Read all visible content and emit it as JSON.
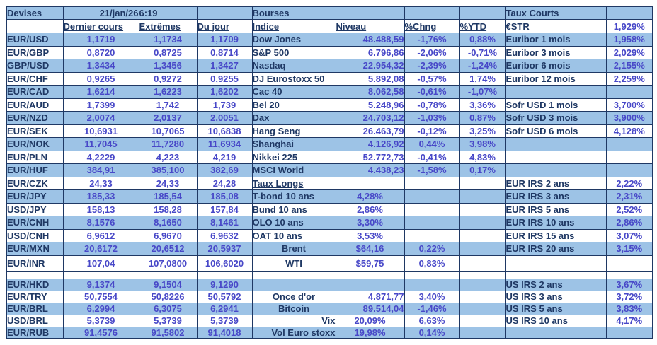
{
  "table_header": {
    "devises_title": "Devises",
    "date": "21/jan/26",
    "time": "6:19",
    "bourses_title": "Bourses",
    "taux_courts_title": "Taux Courts"
  },
  "column_headers": {
    "dernier_cours": "Dernier cours",
    "extremes": "Extrêmes",
    "du_jour": "Du jour",
    "indice": "Indice",
    "niveau": "Niveau",
    "pct_chng": "%Chng",
    "pct_ytd": "%YTD"
  },
  "estr": {
    "label": "€STR",
    "value": "1,929%"
  },
  "devises": [
    {
      "pair": "EUR/USD",
      "dernier_cours": "1,1719",
      "extremes": "1,1734",
      "du_jour": "1,1709"
    },
    {
      "pair": "EUR/GBP",
      "dernier_cours": "0,8720",
      "extremes": "0,8725",
      "du_jour": "0,8714"
    },
    {
      "pair": "GBP/USD",
      "dernier_cours": "1,3434",
      "extremes": "1,3456",
      "du_jour": "1,3427"
    },
    {
      "pair": "EUR/CHF",
      "dernier_cours": "0,9265",
      "extremes": "0,9272",
      "du_jour": "0,9255"
    },
    {
      "pair": "EUR/CAD",
      "dernier_cours": "1,6214",
      "extremes": "1,6223",
      "du_jour": "1,6202"
    },
    {
      "pair": "EUR/AUD",
      "dernier_cours": "1,7399",
      "extremes": "1,742",
      "du_jour": "1,739"
    },
    {
      "pair": "EUR/NZD",
      "dernier_cours": "2,0074",
      "extremes": "2,0137",
      "du_jour": "2,0051"
    },
    {
      "pair": "EUR/SEK",
      "dernier_cours": "10,6931",
      "extremes": "10,7065",
      "du_jour": "10,6838"
    },
    {
      "pair": "EUR/NOK",
      "dernier_cours": "11,7045",
      "extremes": "11,7280",
      "du_jour": "11,6934"
    },
    {
      "pair": "EUR/PLN",
      "dernier_cours": "4,2229",
      "extremes": "4,223",
      "du_jour": "4,219"
    },
    {
      "pair": "EUR/HUF",
      "dernier_cours": "384,91",
      "extremes": "385,100",
      "du_jour": "382,69"
    },
    {
      "pair": "EUR/CZK",
      "dernier_cours": "24,33",
      "extremes": "24,33",
      "du_jour": "24,28"
    },
    {
      "pair": "EUR/JPY",
      "dernier_cours": "185,33",
      "extremes": "185,54",
      "du_jour": "185,08"
    },
    {
      "pair": "USD/JPY",
      "dernier_cours": "158,13",
      "extremes": "158,28",
      "du_jour": "157,84"
    },
    {
      "pair": "EUR/CNH",
      "dernier_cours": "8,1576",
      "extremes": "8,1650",
      "du_jour": "8,1461"
    },
    {
      "pair": "USD/CNH",
      "dernier_cours": "6,9612",
      "extremes": "6,9670",
      "du_jour": "6,9632"
    },
    {
      "pair": "EUR/MXN",
      "dernier_cours": "20,6172",
      "extremes": "20,6512",
      "du_jour": "20,5937"
    },
    {
      "pair": "EUR/INR",
      "dernier_cours": "107,04",
      "extremes": "107,0800",
      "du_jour": "106,6020"
    },
    {
      "pair": "EUR/HKD",
      "dernier_cours": "9,1374",
      "extremes": "9,1504",
      "du_jour": "9,1290"
    },
    {
      "pair": "EUR/TRY",
      "dernier_cours": "50,7554",
      "extremes": "50,8226",
      "du_jour": "50,5792"
    },
    {
      "pair": "EUR/BRL",
      "dernier_cours": "6,2994",
      "extremes": "6,3075",
      "du_jour": "6,2941"
    },
    {
      "pair": "USD/BRL",
      "dernier_cours": "5,3739",
      "extremes": "5,3739",
      "du_jour": "5,3739"
    },
    {
      "pair": "EUR/RUB",
      "dernier_cours": "91,4576",
      "extremes": "91,5802",
      "du_jour": "91,4018"
    }
  ],
  "bourses": [
    {
      "indice": "Dow Jones",
      "niveau": "48.488,59",
      "chng": "-1,76%",
      "ytd": "0,88%"
    },
    {
      "indice": "S&P 500",
      "niveau": "6.796,86",
      "chng": "-2,06%",
      "ytd": "-0,71%"
    },
    {
      "indice": "Nasdaq",
      "niveau": "22.954,32",
      "chng": "-2,39%",
      "ytd": "-1,24%"
    },
    {
      "indice": "DJ Eurostoxx 50",
      "niveau": "5.892,08",
      "chng": "-0,57%",
      "ytd": "1,74%"
    },
    {
      "indice": "Cac 40",
      "niveau": "8.062,58",
      "chng": "-0,61%",
      "ytd": "-1,07%"
    },
    {
      "indice": "Bel 20",
      "niveau": "5.248,96",
      "chng": "-0,78%",
      "ytd": "3,36%"
    },
    {
      "indice": "Dax",
      "niveau": "24.703,12",
      "chng": "-1,03%",
      "ytd": "0,87%"
    },
    {
      "indice": "Hang Seng",
      "niveau": "26.463,79",
      "chng": "-0,12%",
      "ytd": "3,25%"
    },
    {
      "indice": "Shanghai",
      "niveau": "4.126,92",
      "chng": "0,44%",
      "ytd": "3,98%"
    },
    {
      "indice": "Nikkei 225",
      "niveau": "52.772,73",
      "chng": "-0,41%",
      "ytd": "4,83%"
    },
    {
      "indice": "MSCI World",
      "niveau": "4.438,23",
      "chng": "-1,58%",
      "ytd": "0,17%"
    },
    {
      "indice": "Taux Longs",
      "niveau": "",
      "chng": "",
      "ytd": ""
    },
    {
      "indice": "T-bond 10 ans",
      "niveau": "4,28%",
      "chng": "",
      "ytd": ""
    },
    {
      "indice": "Bund 10 ans",
      "niveau": "2,86%",
      "chng": "",
      "ytd": ""
    },
    {
      "indice": "OLO 10 ans",
      "niveau": "3,30%",
      "chng": "",
      "ytd": ""
    },
    {
      "indice": "OAT 10 ans",
      "niveau": "3,53%",
      "chng": "",
      "ytd": ""
    },
    {
      "indice": "Brent",
      "niveau": "$64,16",
      "chng": "0,22%",
      "ytd": ""
    },
    {
      "indice": "WTI",
      "niveau": "$59,75",
      "chng": "0,83%",
      "ytd": ""
    },
    {
      "indice": "",
      "niveau": "",
      "chng": "",
      "ytd": ""
    },
    {
      "indice": "Once d'or",
      "niveau": "4.871,77",
      "chng": "3,40%",
      "ytd": ""
    },
    {
      "indice": "Bitcoin",
      "niveau": "89.514,04",
      "chng": "-1,46%",
      "ytd": ""
    },
    {
      "indice": "Vix",
      "niveau": "20,09%",
      "chng": "6,63%",
      "ytd": ""
    },
    {
      "indice": "Vol Euro stoxx",
      "niveau": "19,98%",
      "chng": "0,14%",
      "ytd": ""
    }
  ],
  "taux_courts": [
    {
      "label": "Euribor 1 mois",
      "value": "1,958%"
    },
    {
      "label": "Euribor 3 mois",
      "value": "2,029%"
    },
    {
      "label": "Euribor 6 mois",
      "value": "2,155%"
    },
    {
      "label": "Euribor 12 mois",
      "value": "2,259%"
    },
    {
      "label": "",
      "value": ""
    },
    {
      "label": "Sofr USD 1 mois",
      "value": "3,700%"
    },
    {
      "label": "Sofr USD 3 mois",
      "value": "3,900%"
    },
    {
      "label": "Sofr USD 6 mois",
      "value": "4,128%"
    },
    {
      "label": "",
      "value": ""
    },
    {
      "label": "",
      "value": ""
    },
    {
      "label": "",
      "value": ""
    },
    {
      "label": "EUR IRS 2 ans",
      "value": "2,22%"
    },
    {
      "label": "EUR IRS 3 ans",
      "value": "2,31%"
    },
    {
      "label": "EUR IRS 5 ans",
      "value": "2,52%"
    },
    {
      "label": "EUR IRS 10 ans",
      "value": "2,86%"
    },
    {
      "label": "EUR IRS 15 ans",
      "value": "3,07%"
    },
    {
      "label": "EUR IRS 20 ans",
      "value": "3,15%"
    },
    {
      "label": "",
      "value": ""
    },
    {
      "label": "US IRS 2 ans",
      "value": "3,67%"
    },
    {
      "label": "US IRS 3 ans",
      "value": "3,72%"
    },
    {
      "label": "US IRS 5 ans",
      "value": "3,83%"
    },
    {
      "label": "US IRS 10 ans",
      "value": "4,17%"
    },
    {
      "label": "",
      "value": ""
    }
  ],
  "colors": {
    "row_blue": "#9DC3E6",
    "label_navy": "#1F3864",
    "value_blue": "#4848C8",
    "border_navy": "#1F3864"
  }
}
